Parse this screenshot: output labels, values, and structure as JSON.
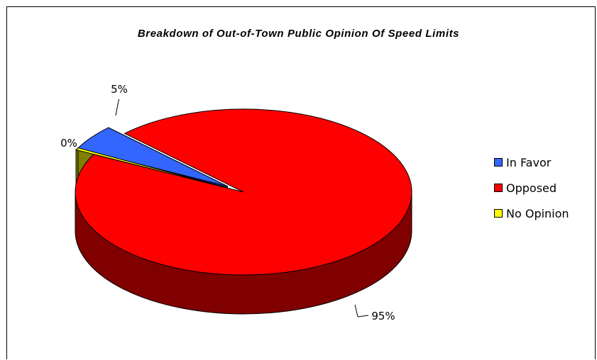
{
  "chart_data": {
    "type": "pie",
    "title": "Breakdown of Out-of-Town Public Opinion Of Speed Limits",
    "categories": [
      "In Favor",
      "Opposed",
      "No Opinion"
    ],
    "values": [
      5,
      95,
      0
    ],
    "data_labels": [
      "5%",
      "95%",
      "0%"
    ],
    "colors": [
      "#3366ff",
      "#ff0000",
      "#ffff00"
    ],
    "side_colors": [
      "#1a3399",
      "#800000",
      "#808000"
    ],
    "legend_position": "right",
    "style": "3d-exploded"
  }
}
